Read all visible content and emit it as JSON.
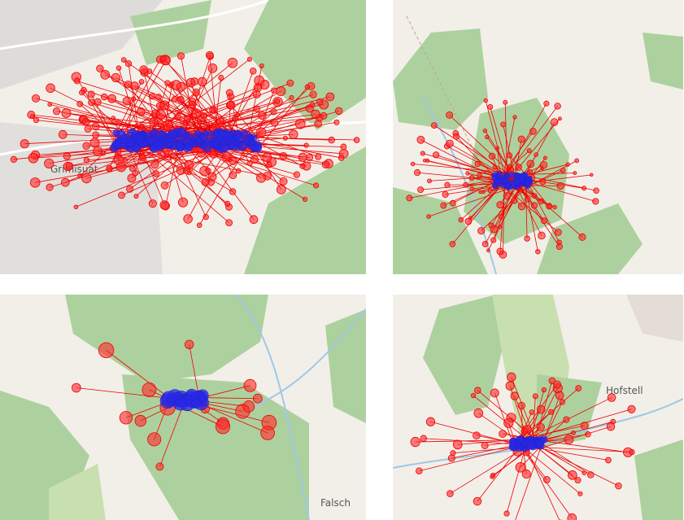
{
  "labels": [
    "Grimisuat",
    "Falsch",
    "Hofstell"
  ]
}
